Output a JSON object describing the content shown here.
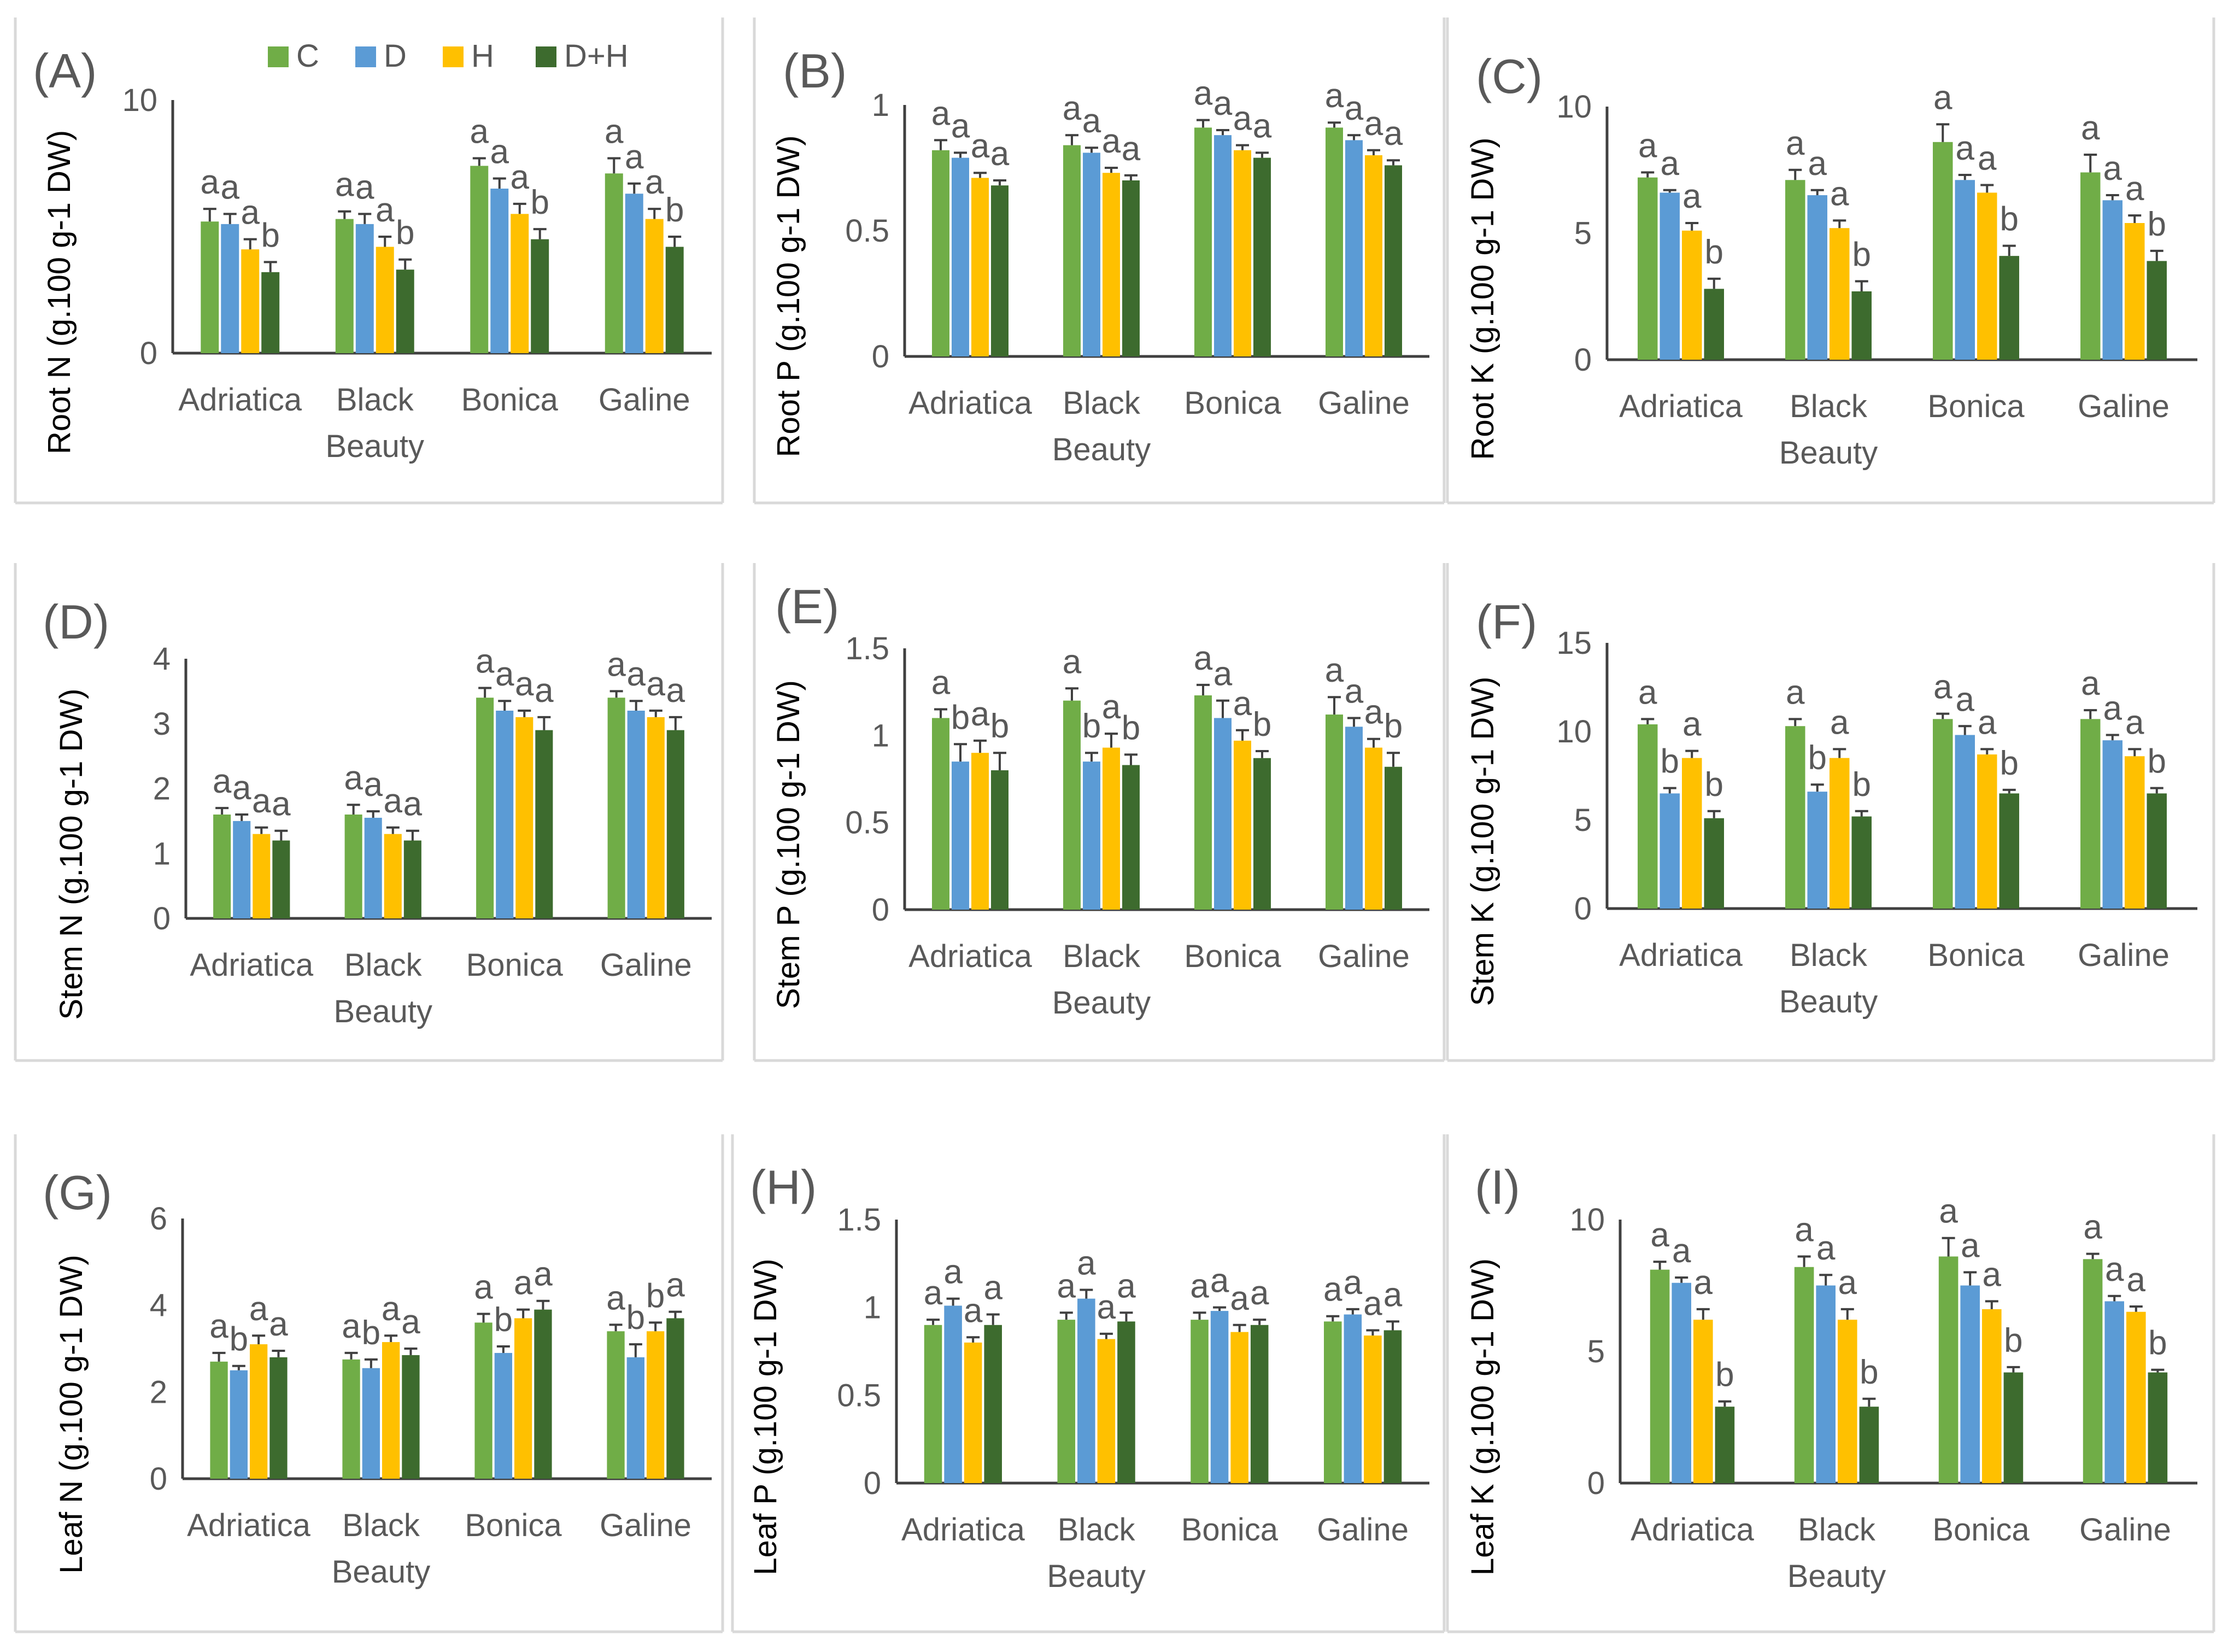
{
  "legend": [
    {
      "name": "C",
      "color": "#70ad47"
    },
    {
      "name": "D",
      "color": "#5b9bd5"
    },
    {
      "name": "H",
      "color": "#ffc000"
    },
    {
      "name": "D+H",
      "color": "#3d6b2e"
    }
  ],
  "colors": {
    "axis": "#404040",
    "text": "#595959",
    "error_bar": "#404040",
    "panel_border": "#d9d9d9"
  },
  "chart_data": [
    {
      "id": "A",
      "panel_label": "(A)",
      "type": "bar",
      "ylabel": "Root N  (g.100 g-1 DW)",
      "ylim": [
        0,
        10
      ],
      "yticks": [
        "0",
        "10"
      ],
      "categories": [
        "Adriatica",
        "Black Beauty",
        "Bonica",
        "Galine"
      ],
      "series": [
        {
          "name": "C",
          "values": [
            5.2,
            5.3,
            7.4,
            7.1
          ],
          "errors": [
            0.5,
            0.3,
            0.3,
            0.6
          ],
          "letters": [
            "a",
            "a",
            "a",
            "a"
          ]
        },
        {
          "name": "D",
          "values": [
            5.1,
            5.1,
            6.5,
            6.3
          ],
          "errors": [
            0.4,
            0.4,
            0.4,
            0.4
          ],
          "letters": [
            "a",
            "a",
            "a",
            "a"
          ]
        },
        {
          "name": "H",
          "values": [
            4.1,
            4.2,
            5.5,
            5.3
          ],
          "errors": [
            0.4,
            0.4,
            0.4,
            0.4
          ],
          "letters": [
            "a",
            "a",
            "a",
            "a"
          ]
        },
        {
          "name": "D+H",
          "values": [
            3.2,
            3.3,
            4.5,
            4.2
          ],
          "errors": [
            0.4,
            0.4,
            0.4,
            0.4
          ],
          "letters": [
            "b",
            "b",
            "b",
            "b"
          ]
        }
      ]
    },
    {
      "id": "B",
      "panel_label": "(B)",
      "type": "bar",
      "ylabel": "Root P  (g.100 g-1 DW)",
      "ylim": [
        0,
        1
      ],
      "yticks": [
        "0",
        "0.5",
        "1"
      ],
      "categories": [
        "Adriatica",
        "Black Beauty",
        "Bonica",
        "Galine"
      ],
      "series": [
        {
          "name": "C",
          "values": [
            0.82,
            0.84,
            0.91,
            0.91
          ],
          "errors": [
            0.04,
            0.04,
            0.03,
            0.02
          ],
          "letters": [
            "a",
            "a",
            "a",
            "a"
          ]
        },
        {
          "name": "D",
          "values": [
            0.79,
            0.81,
            0.88,
            0.86
          ],
          "errors": [
            0.02,
            0.02,
            0.02,
            0.02
          ],
          "letters": [
            "a",
            "a",
            "a",
            "a"
          ]
        },
        {
          "name": "H",
          "values": [
            0.71,
            0.73,
            0.82,
            0.8
          ],
          "errors": [
            0.02,
            0.02,
            0.02,
            0.02
          ],
          "letters": [
            "a",
            "a",
            "a",
            "a"
          ]
        },
        {
          "name": "D+H",
          "values": [
            0.68,
            0.7,
            0.79,
            0.76
          ],
          "errors": [
            0.02,
            0.02,
            0.02,
            0.02
          ],
          "letters": [
            "a",
            "a",
            "a",
            "a"
          ]
        }
      ]
    },
    {
      "id": "C",
      "panel_label": "(C)",
      "type": "bar",
      "ylabel": "Root K  (g.100 g-1 DW)",
      "ylim": [
        0,
        10
      ],
      "yticks": [
        "0",
        "5",
        "10"
      ],
      "categories": [
        "Adriatica",
        "Black Beauty",
        "Bonica",
        "Galine"
      ],
      "series": [
        {
          "name": "C",
          "values": [
            7.2,
            7.1,
            8.6,
            7.4
          ],
          "errors": [
            0.2,
            0.4,
            0.7,
            0.7
          ],
          "letters": [
            "a",
            "a",
            "a",
            "a"
          ]
        },
        {
          "name": "D",
          "values": [
            6.6,
            6.5,
            7.1,
            6.3
          ],
          "errors": [
            0.1,
            0.2,
            0.2,
            0.2
          ],
          "letters": [
            "a",
            "a",
            "a",
            "a"
          ]
        },
        {
          "name": "H",
          "values": [
            5.1,
            5.2,
            6.6,
            5.4
          ],
          "errors": [
            0.3,
            0.3,
            0.3,
            0.3
          ],
          "letters": [
            "a",
            "a",
            "a",
            "a"
          ]
        },
        {
          "name": "D+H",
          "values": [
            2.8,
            2.7,
            4.1,
            3.9
          ],
          "errors": [
            0.4,
            0.4,
            0.4,
            0.4
          ],
          "letters": [
            "b",
            "b",
            "b",
            "b"
          ]
        }
      ]
    },
    {
      "id": "D",
      "panel_label": "(D)",
      "type": "bar",
      "ylabel": "Stem N (g.100 g-1 DW)",
      "ylim": [
        0,
        4
      ],
      "yticks": [
        "0",
        "1",
        "2",
        "3",
        "4"
      ],
      "categories": [
        "Adriatica",
        "Black Beauty",
        "Bonica",
        "Galine"
      ],
      "series": [
        {
          "name": "C",
          "values": [
            1.6,
            1.6,
            3.4,
            3.4
          ],
          "errors": [
            0.1,
            0.15,
            0.15,
            0.1
          ],
          "letters": [
            "a",
            "a",
            "a",
            "a"
          ]
        },
        {
          "name": "D",
          "values": [
            1.5,
            1.55,
            3.2,
            3.2
          ],
          "errors": [
            0.1,
            0.1,
            0.15,
            0.15
          ],
          "letters": [
            "a",
            "a",
            "a",
            "a"
          ]
        },
        {
          "name": "H",
          "values": [
            1.3,
            1.3,
            3.1,
            3.1
          ],
          "errors": [
            0.1,
            0.1,
            0.1,
            0.1
          ],
          "letters": [
            "a",
            "a",
            "a",
            "a"
          ]
        },
        {
          "name": "D+H",
          "values": [
            1.2,
            1.2,
            2.9,
            2.9
          ],
          "errors": [
            0.15,
            0.15,
            0.2,
            0.2
          ],
          "letters": [
            "a",
            "a",
            "a",
            "a"
          ]
        }
      ]
    },
    {
      "id": "E",
      "panel_label": "(E)",
      "type": "bar",
      "ylabel": "Stem P (g.100 g-1 DW)",
      "ylim": [
        0,
        1.5
      ],
      "yticks": [
        "0",
        "0.5",
        "1",
        "1.5"
      ],
      "categories": [
        "Adriatica",
        "Black Beauty",
        "Bonica",
        "Galine"
      ],
      "series": [
        {
          "name": "C",
          "values": [
            1.1,
            1.2,
            1.23,
            1.12
          ],
          "errors": [
            0.05,
            0.07,
            0.06,
            0.1
          ],
          "letters": [
            "a",
            "a",
            "a",
            "a"
          ]
        },
        {
          "name": "D",
          "values": [
            0.85,
            0.85,
            1.1,
            1.05
          ],
          "errors": [
            0.1,
            0.05,
            0.1,
            0.05
          ],
          "letters": [
            "b",
            "b",
            "a",
            "a"
          ]
        },
        {
          "name": "H",
          "values": [
            0.9,
            0.93,
            0.97,
            0.93
          ],
          "errors": [
            0.07,
            0.08,
            0.06,
            0.05
          ],
          "letters": [
            "a",
            "a",
            "a",
            "a"
          ]
        },
        {
          "name": "D+H",
          "values": [
            0.8,
            0.83,
            0.87,
            0.82
          ],
          "errors": [
            0.1,
            0.06,
            0.04,
            0.08
          ],
          "letters": [
            "b",
            "b",
            "b",
            "b"
          ]
        }
      ]
    },
    {
      "id": "F",
      "panel_label": "(F)",
      "type": "bar",
      "ylabel": "Stem K (g.100 g-1 DW)",
      "ylim": [
        0,
        15
      ],
      "yticks": [
        "0",
        "5",
        "10",
        "15"
      ],
      "categories": [
        "Adriatica",
        "Black Beauty",
        "Bonica",
        "Galine"
      ],
      "series": [
        {
          "name": "C",
          "values": [
            10.4,
            10.3,
            10.7,
            10.7
          ],
          "errors": [
            0.3,
            0.4,
            0.3,
            0.5
          ],
          "letters": [
            "a",
            "a",
            "a",
            "a"
          ]
        },
        {
          "name": "D",
          "values": [
            6.5,
            6.6,
            9.8,
            9.5
          ],
          "errors": [
            0.3,
            0.4,
            0.5,
            0.3
          ],
          "letters": [
            "b",
            "b",
            "a",
            "a"
          ]
        },
        {
          "name": "H",
          "values": [
            8.5,
            8.5,
            8.7,
            8.6
          ],
          "errors": [
            0.4,
            0.5,
            0.3,
            0.4
          ],
          "letters": [
            "a",
            "a",
            "a",
            "a"
          ]
        },
        {
          "name": "D+H",
          "values": [
            5.1,
            5.2,
            6.5,
            6.5
          ],
          "errors": [
            0.4,
            0.3,
            0.2,
            0.3
          ],
          "letters": [
            "b",
            "b",
            "b",
            "b"
          ]
        }
      ]
    },
    {
      "id": "G",
      "panel_label": "(G)",
      "type": "bar",
      "ylabel": "Leaf N (g.100 g-1 DW)",
      "ylim": [
        0,
        6
      ],
      "yticks": [
        "0",
        "2",
        "4",
        "6"
      ],
      "categories": [
        "Adriatica",
        "Black Beauty",
        "Bonica",
        "Galine"
      ],
      "series": [
        {
          "name": "C",
          "values": [
            2.7,
            2.75,
            3.6,
            3.4
          ],
          "errors": [
            0.2,
            0.15,
            0.2,
            0.15
          ],
          "letters": [
            "a",
            "a",
            "a",
            "a"
          ]
        },
        {
          "name": "D",
          "values": [
            2.5,
            2.55,
            2.9,
            2.8
          ],
          "errors": [
            0.1,
            0.2,
            0.15,
            0.3
          ],
          "letters": [
            "b",
            "b",
            "b",
            "b"
          ]
        },
        {
          "name": "H",
          "values": [
            3.1,
            3.15,
            3.7,
            3.4
          ],
          "errors": [
            0.2,
            0.15,
            0.2,
            0.2
          ],
          "letters": [
            "a",
            "a",
            "a",
            "b"
          ]
        },
        {
          "name": "D+H",
          "values": [
            2.8,
            2.85,
            3.9,
            3.7
          ],
          "errors": [
            0.15,
            0.15,
            0.2,
            0.15
          ],
          "letters": [
            "a",
            "a",
            "a",
            "a"
          ]
        }
      ]
    },
    {
      "id": "H",
      "panel_label": "(H)",
      "type": "bar",
      "ylabel": "Leaf P (g.100 g-1 DW)",
      "ylim": [
        0,
        1.5
      ],
      "yticks": [
        "0",
        "0.5",
        "1",
        "1.5"
      ],
      "categories": [
        "Adriatica",
        "Black Beauty",
        "Bonica",
        "Galine"
      ],
      "series": [
        {
          "name": "C",
          "values": [
            0.9,
            0.93,
            0.93,
            0.92
          ],
          "errors": [
            0.03,
            0.04,
            0.04,
            0.03
          ],
          "letters": [
            "a",
            "a",
            "a",
            "a"
          ]
        },
        {
          "name": "D",
          "values": [
            1.01,
            1.05,
            0.98,
            0.96
          ],
          "errors": [
            0.04,
            0.05,
            0.02,
            0.03
          ],
          "letters": [
            "a",
            "a",
            "a",
            "a"
          ]
        },
        {
          "name": "H",
          "values": [
            0.8,
            0.82,
            0.86,
            0.84
          ],
          "errors": [
            0.03,
            0.03,
            0.04,
            0.03
          ],
          "letters": [
            "a",
            "a",
            "a",
            "a"
          ]
        },
        {
          "name": "D+H",
          "values": [
            0.9,
            0.92,
            0.9,
            0.87
          ],
          "errors": [
            0.06,
            0.05,
            0.03,
            0.05
          ],
          "letters": [
            "a",
            "a",
            "a",
            "a"
          ]
        }
      ]
    },
    {
      "id": "I",
      "panel_label": "(I)",
      "type": "bar",
      "ylabel": "Leaf K (g.100 g-1 DW)",
      "ylim": [
        0,
        10
      ],
      "yticks": [
        "0",
        "5",
        "10"
      ],
      "categories": [
        "Adriatica",
        "Black Beauty",
        "Bonica",
        "Galine"
      ],
      "series": [
        {
          "name": "C",
          "values": [
            8.1,
            8.2,
            8.6,
            8.5
          ],
          "errors": [
            0.3,
            0.4,
            0.7,
            0.2
          ],
          "letters": [
            "a",
            "a",
            "a",
            "a"
          ]
        },
        {
          "name": "D",
          "values": [
            7.6,
            7.5,
            7.5,
            6.9
          ],
          "errors": [
            0.2,
            0.4,
            0.5,
            0.2
          ],
          "letters": [
            "a",
            "a",
            "a",
            "a"
          ]
        },
        {
          "name": "H",
          "values": [
            6.2,
            6.2,
            6.6,
            6.5
          ],
          "errors": [
            0.4,
            0.4,
            0.3,
            0.2
          ],
          "letters": [
            "a",
            "a",
            "a",
            "a"
          ]
        },
        {
          "name": "D+H",
          "values": [
            2.9,
            2.9,
            4.2,
            4.2
          ],
          "errors": [
            0.2,
            0.3,
            0.2,
            0.1
          ],
          "letters": [
            "b",
            "b",
            "b",
            "b"
          ]
        }
      ]
    }
  ]
}
